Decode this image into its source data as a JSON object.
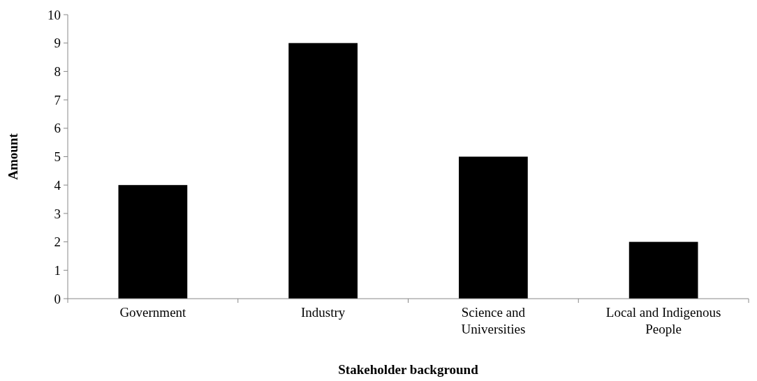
{
  "chart_data": {
    "type": "bar",
    "xlabel": "Stakeholder background",
    "ylabel": "Amount",
    "categories": [
      "Government",
      "Industry",
      "Science and Universities",
      "Local and Indigenous People"
    ],
    "values": [
      4,
      9,
      5,
      2
    ],
    "color": "#000000",
    "ylim": [
      0,
      10
    ],
    "yticks": [
      0,
      1,
      2,
      3,
      4,
      5,
      6,
      7,
      8,
      9,
      10
    ],
    "grid": false
  }
}
